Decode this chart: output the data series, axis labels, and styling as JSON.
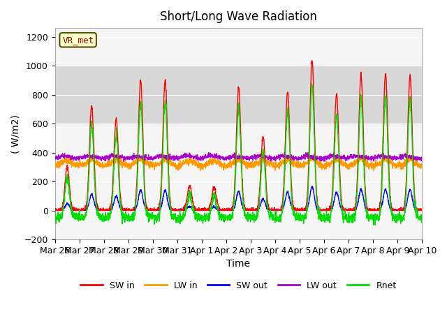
{
  "title": "Short/Long Wave Radiation",
  "ylabel": "( W/m2)",
  "xlabel": "Time",
  "station_label": "VR_met",
  "ylim": [
    -200,
    1260
  ],
  "yticks": [
    -200,
    0,
    200,
    400,
    600,
    800,
    1000,
    1200
  ],
  "x_tick_labels": [
    "Mar 26",
    "Mar 27",
    "Mar 28",
    "Mar 29",
    "Mar 30",
    "Mar 31",
    "Apr 1",
    "Apr 2",
    "Apr 3",
    "Apr 4",
    "Apr 5",
    "Apr 6",
    "Apr 7",
    "Apr 8",
    "Apr 9",
    "Apr 10"
  ],
  "legend_labels": [
    "SW in",
    "LW in",
    "SW out",
    "LW out",
    "Rnet"
  ],
  "line_colors": {
    "SW_in": "#ff0000",
    "LW_in": "#ff9900",
    "SW_out": "#0000ff",
    "LW_out": "#aa00cc",
    "Rnet": "#00dd00"
  },
  "shading_band": [
    600,
    1000
  ],
  "shading_color": "#d8d8d8",
  "bg_color": "#f5f5f5",
  "n_days": 15,
  "points_per_day": 144,
  "seed": 42,
  "title_fontsize": 12,
  "axis_label_fontsize": 10,
  "tick_fontsize": 9,
  "SW_in_peaks": [
    300,
    720,
    630,
    900,
    900,
    170,
    160,
    850,
    510,
    820,
    1040,
    800,
    940,
    940,
    930
  ],
  "LW_in_base": 325,
  "LW_out_base": 370,
  "line_width": 1.0
}
